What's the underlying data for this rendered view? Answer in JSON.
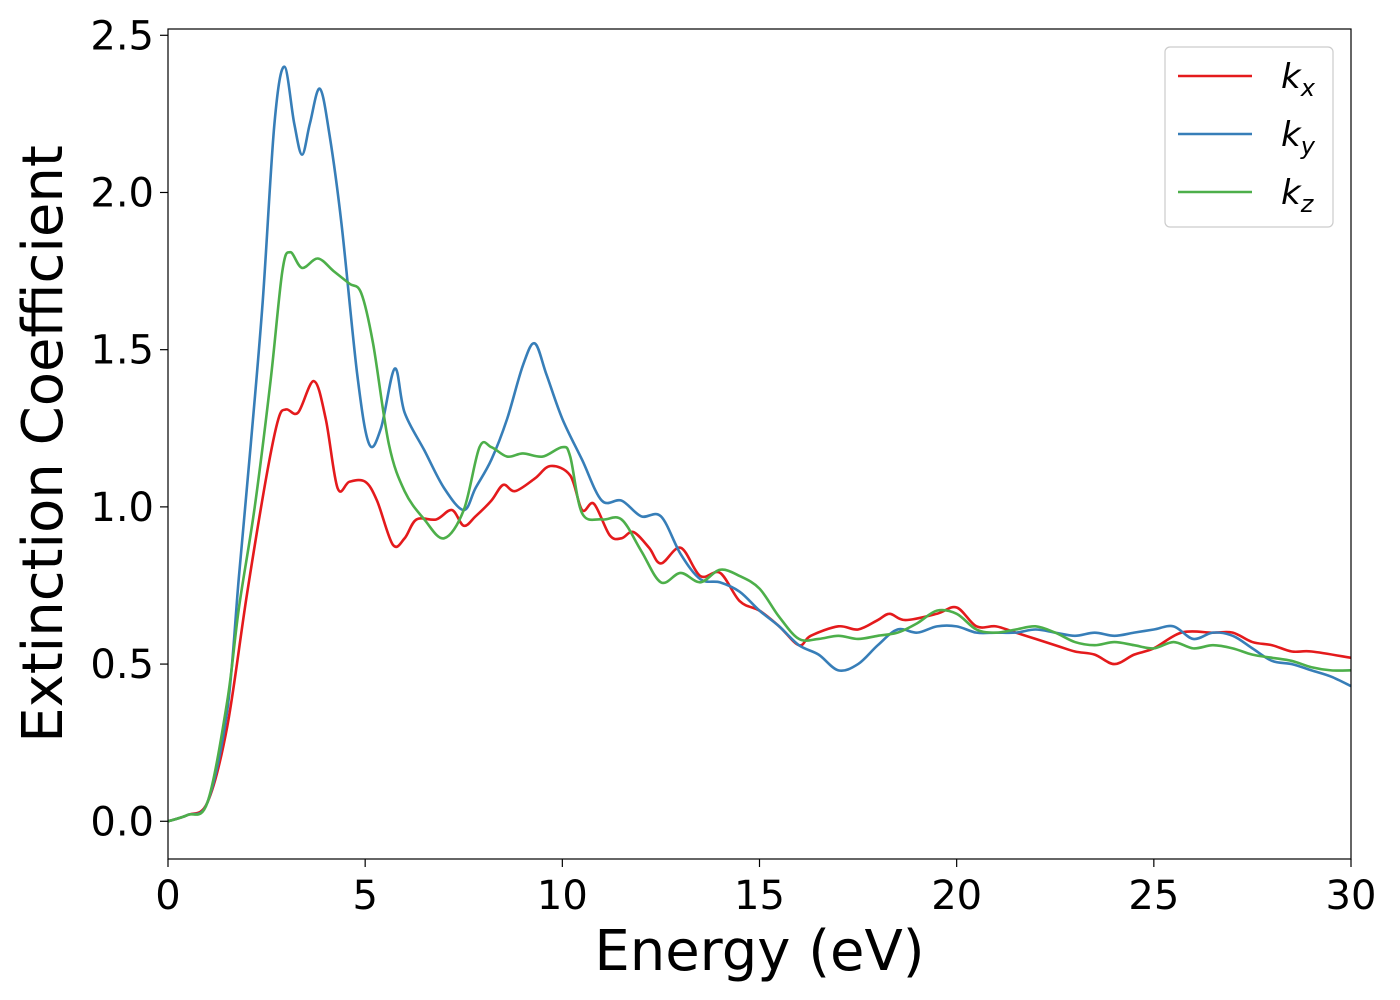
{
  "chart_data": {
    "type": "line",
    "title": "",
    "xlabel": "Energy (eV)",
    "ylabel": "Extinction Coefficient",
    "xlim": [
      0,
      30
    ],
    "ylim": [
      -0.12,
      2.52
    ],
    "xticks": [
      0,
      5,
      10,
      15,
      20,
      25,
      30
    ],
    "xtick_labels": [
      "0",
      "5",
      "10",
      "15",
      "20",
      "25",
      "30"
    ],
    "yticks": [
      0.0,
      0.5,
      1.0,
      1.5,
      2.0,
      2.5
    ],
    "ytick_labels": [
      "0.0",
      "0.5",
      "1.0",
      "1.5",
      "2.0",
      "2.5"
    ],
    "grid": false,
    "legend_position": "top-right",
    "series": [
      {
        "name": "k",
        "subscript": "x",
        "color": "#e41a1c",
        "points": [
          [
            0,
            0
          ],
          [
            0.5,
            0.02
          ],
          [
            1,
            0.06
          ],
          [
            1.5,
            0.3
          ],
          [
            2,
            0.72
          ],
          [
            2.5,
            1.1
          ],
          [
            2.8,
            1.28
          ],
          [
            3,
            1.31
          ],
          [
            3.3,
            1.3
          ],
          [
            3.7,
            1.4
          ],
          [
            4,
            1.28
          ],
          [
            4.3,
            1.06
          ],
          [
            4.6,
            1.08
          ],
          [
            5,
            1.08
          ],
          [
            5.3,
            1.02
          ],
          [
            5.7,
            0.88
          ],
          [
            6,
            0.9
          ],
          [
            6.3,
            0.96
          ],
          [
            6.8,
            0.96
          ],
          [
            7.2,
            0.99
          ],
          [
            7.5,
            0.94
          ],
          [
            7.8,
            0.97
          ],
          [
            8.2,
            1.02
          ],
          [
            8.5,
            1.07
          ],
          [
            8.8,
            1.05
          ],
          [
            9.3,
            1.09
          ],
          [
            9.7,
            1.13
          ],
          [
            10.2,
            1.1
          ],
          [
            10.5,
            0.99
          ],
          [
            10.8,
            1.01
          ],
          [
            11.2,
            0.91
          ],
          [
            11.5,
            0.9
          ],
          [
            11.8,
            0.92
          ],
          [
            12.2,
            0.87
          ],
          [
            12.5,
            0.82
          ],
          [
            13,
            0.87
          ],
          [
            13.5,
            0.78
          ],
          [
            14,
            0.79
          ],
          [
            14.5,
            0.7
          ],
          [
            15,
            0.67
          ],
          [
            15.5,
            0.62
          ],
          [
            16,
            0.56
          ],
          [
            16.3,
            0.59
          ],
          [
            17,
            0.62
          ],
          [
            17.5,
            0.61
          ],
          [
            18,
            0.64
          ],
          [
            18.3,
            0.66
          ],
          [
            18.7,
            0.64
          ],
          [
            19.5,
            0.66
          ],
          [
            20,
            0.68
          ],
          [
            20.5,
            0.62
          ],
          [
            21,
            0.62
          ],
          [
            21.5,
            0.6
          ],
          [
            22.5,
            0.56
          ],
          [
            23,
            0.54
          ],
          [
            23.5,
            0.53
          ],
          [
            24,
            0.5
          ],
          [
            24.5,
            0.53
          ],
          [
            25,
            0.55
          ],
          [
            25.7,
            0.6
          ],
          [
            26.5,
            0.6
          ],
          [
            27,
            0.6
          ],
          [
            27.5,
            0.57
          ],
          [
            28,
            0.56
          ],
          [
            28.5,
            0.54
          ],
          [
            29,
            0.54
          ],
          [
            30,
            0.52
          ]
        ]
      },
      {
        "name": "k",
        "subscript": "y",
        "color": "#377eb8",
        "points": [
          [
            0,
            0
          ],
          [
            0.5,
            0.02
          ],
          [
            1,
            0.06
          ],
          [
            1.5,
            0.35
          ],
          [
            1.8,
            0.78
          ],
          [
            2.1,
            1.2
          ],
          [
            2.4,
            1.65
          ],
          [
            2.7,
            2.22
          ],
          [
            2.95,
            2.4
          ],
          [
            3.2,
            2.22
          ],
          [
            3.4,
            2.12
          ],
          [
            3.6,
            2.22
          ],
          [
            3.85,
            2.33
          ],
          [
            4.1,
            2.18
          ],
          [
            4.4,
            1.9
          ],
          [
            4.8,
            1.42
          ],
          [
            5.1,
            1.2
          ],
          [
            5.4,
            1.25
          ],
          [
            5.75,
            1.44
          ],
          [
            6,
            1.3
          ],
          [
            6.5,
            1.18
          ],
          [
            7,
            1.06
          ],
          [
            7.5,
            0.99
          ],
          [
            7.8,
            1.06
          ],
          [
            8.2,
            1.15
          ],
          [
            8.6,
            1.28
          ],
          [
            9,
            1.45
          ],
          [
            9.3,
            1.52
          ],
          [
            9.6,
            1.42
          ],
          [
            10,
            1.28
          ],
          [
            10.5,
            1.15
          ],
          [
            11,
            1.02
          ],
          [
            11.5,
            1.02
          ],
          [
            12,
            0.97
          ],
          [
            12.5,
            0.97
          ],
          [
            13,
            0.85
          ],
          [
            13.5,
            0.77
          ],
          [
            14,
            0.76
          ],
          [
            14.5,
            0.73
          ],
          [
            15,
            0.67
          ],
          [
            15.5,
            0.62
          ],
          [
            16,
            0.56
          ],
          [
            16.5,
            0.53
          ],
          [
            17,
            0.48
          ],
          [
            17.5,
            0.5
          ],
          [
            18,
            0.56
          ],
          [
            18.5,
            0.61
          ],
          [
            19,
            0.6
          ],
          [
            19.5,
            0.62
          ],
          [
            20,
            0.62
          ],
          [
            20.5,
            0.6
          ],
          [
            21,
            0.6
          ],
          [
            21.5,
            0.6
          ],
          [
            22,
            0.61
          ],
          [
            22.5,
            0.6
          ],
          [
            23,
            0.59
          ],
          [
            23.5,
            0.6
          ],
          [
            24,
            0.59
          ],
          [
            24.5,
            0.6
          ],
          [
            25,
            0.61
          ],
          [
            25.5,
            0.62
          ],
          [
            26,
            0.58
          ],
          [
            26.5,
            0.6
          ],
          [
            27,
            0.59
          ],
          [
            27.5,
            0.55
          ],
          [
            28,
            0.51
          ],
          [
            28.5,
            0.5
          ],
          [
            29,
            0.48
          ],
          [
            29.5,
            0.46
          ],
          [
            30,
            0.43
          ]
        ]
      },
      {
        "name": "k",
        "subscript": "z",
        "color": "#4daf4a",
        "points": [
          [
            0,
            0
          ],
          [
            0.5,
            0.02
          ],
          [
            1,
            0.06
          ],
          [
            1.5,
            0.38
          ],
          [
            1.8,
            0.68
          ],
          [
            2.2,
            1.0
          ],
          [
            2.6,
            1.4
          ],
          [
            2.9,
            1.75
          ],
          [
            3.1,
            1.81
          ],
          [
            3.4,
            1.76
          ],
          [
            3.8,
            1.79
          ],
          [
            4.2,
            1.75
          ],
          [
            4.6,
            1.71
          ],
          [
            4.9,
            1.68
          ],
          [
            5.2,
            1.52
          ],
          [
            5.6,
            1.2
          ],
          [
            6,
            1.05
          ],
          [
            6.5,
            0.96
          ],
          [
            7,
            0.9
          ],
          [
            7.5,
            0.99
          ],
          [
            7.9,
            1.19
          ],
          [
            8.2,
            1.19
          ],
          [
            8.6,
            1.16
          ],
          [
            9,
            1.17
          ],
          [
            9.5,
            1.16
          ],
          [
            10,
            1.19
          ],
          [
            10.2,
            1.16
          ],
          [
            10.5,
            0.98
          ],
          [
            11,
            0.96
          ],
          [
            11.5,
            0.96
          ],
          [
            12,
            0.86
          ],
          [
            12.5,
            0.76
          ],
          [
            13,
            0.79
          ],
          [
            13.5,
            0.76
          ],
          [
            14,
            0.8
          ],
          [
            14.5,
            0.78
          ],
          [
            15,
            0.74
          ],
          [
            15.5,
            0.65
          ],
          [
            16,
            0.58
          ],
          [
            16.5,
            0.58
          ],
          [
            17,
            0.59
          ],
          [
            17.5,
            0.58
          ],
          [
            18,
            0.59
          ],
          [
            18.5,
            0.6
          ],
          [
            19,
            0.63
          ],
          [
            19.5,
            0.67
          ],
          [
            20,
            0.66
          ],
          [
            20.5,
            0.61
          ],
          [
            21,
            0.6
          ],
          [
            21.5,
            0.61
          ],
          [
            22,
            0.62
          ],
          [
            22.5,
            0.6
          ],
          [
            23,
            0.57
          ],
          [
            23.5,
            0.56
          ],
          [
            24,
            0.57
          ],
          [
            24.5,
            0.56
          ],
          [
            25,
            0.55
          ],
          [
            25.5,
            0.57
          ],
          [
            26,
            0.55
          ],
          [
            26.5,
            0.56
          ],
          [
            27,
            0.55
          ],
          [
            27.5,
            0.53
          ],
          [
            28,
            0.52
          ],
          [
            28.5,
            0.51
          ],
          [
            29,
            0.49
          ],
          [
            29.5,
            0.48
          ],
          [
            30,
            0.48
          ]
        ]
      }
    ]
  }
}
